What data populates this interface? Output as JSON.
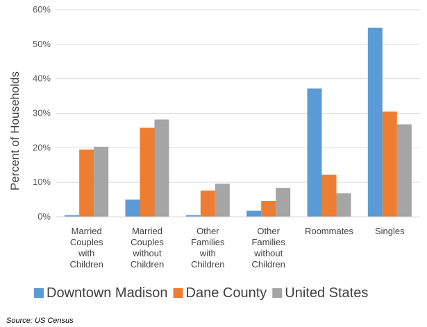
{
  "chart_data": {
    "type": "bar",
    "categories": [
      [
        "Married",
        "Couples",
        "with",
        "Children"
      ],
      [
        "Married",
        "Couples",
        "without",
        "Children"
      ],
      [
        "Other",
        "Families",
        "with",
        "Children"
      ],
      [
        "Other",
        "Families",
        "without",
        "Children"
      ],
      [
        "Roommates"
      ],
      [
        "Singles"
      ]
    ],
    "series": [
      {
        "name": "Downtown Madison",
        "color": "#5B9BD5",
        "values": [
          0.5,
          5.0,
          0.5,
          1.8,
          37.2,
          54.8
        ]
      },
      {
        "name": "Dane County",
        "color": "#ED7D31",
        "values": [
          19.5,
          25.8,
          7.6,
          4.6,
          12.2,
          30.5
        ]
      },
      {
        "name": "United States",
        "color": "#A5A5A5",
        "values": [
          20.3,
          28.2,
          9.6,
          8.4,
          6.8,
          26.8
        ]
      }
    ],
    "ylabel": "Percent of Households",
    "ylim": [
      0,
      60
    ],
    "yticks": [
      "0%",
      "10%",
      "20%",
      "30%",
      "40%",
      "50%",
      "60%"
    ],
    "grid": true,
    "legend_position": "bottom",
    "gridline_color": "#D9D9D9"
  },
  "source_note": "Source: US Census"
}
